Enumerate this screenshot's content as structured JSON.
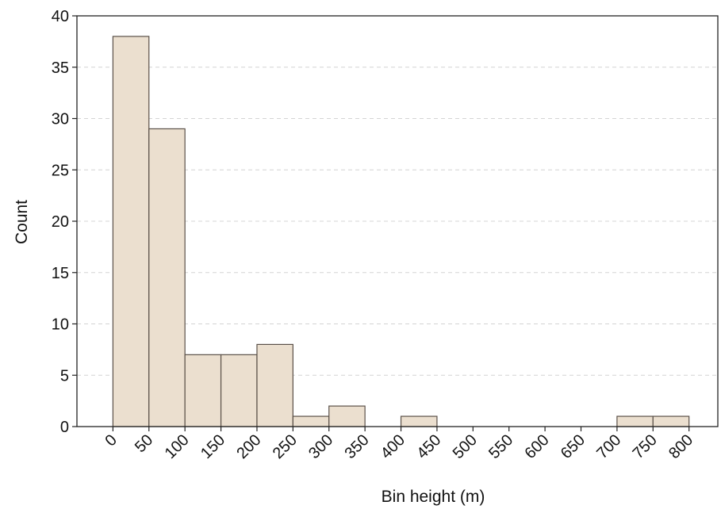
{
  "chart_data": {
    "type": "bar",
    "subtype": "histogram",
    "title": "",
    "xlabel": "Bin height (m)",
    "ylabel": "Count",
    "bins": [
      {
        "start": 0,
        "end": 50,
        "count": 38
      },
      {
        "start": 50,
        "end": 100,
        "count": 29
      },
      {
        "start": 100,
        "end": 150,
        "count": 7
      },
      {
        "start": 150,
        "end": 200,
        "count": 7
      },
      {
        "start": 200,
        "end": 250,
        "count": 8
      },
      {
        "start": 250,
        "end": 300,
        "count": 1
      },
      {
        "start": 300,
        "end": 350,
        "count": 2
      },
      {
        "start": 350,
        "end": 400,
        "count": 0
      },
      {
        "start": 400,
        "end": 450,
        "count": 1
      },
      {
        "start": 450,
        "end": 500,
        "count": 0
      },
      {
        "start": 500,
        "end": 550,
        "count": 0
      },
      {
        "start": 550,
        "end": 600,
        "count": 0
      },
      {
        "start": 600,
        "end": 650,
        "count": 0
      },
      {
        "start": 650,
        "end": 700,
        "count": 0
      },
      {
        "start": 700,
        "end": 750,
        "count": 1
      },
      {
        "start": 750,
        "end": 800,
        "count": 1
      }
    ],
    "xticks": [
      0,
      50,
      100,
      150,
      200,
      250,
      300,
      350,
      400,
      450,
      500,
      550,
      600,
      650,
      700,
      750,
      800
    ],
    "yticks": [
      0,
      5,
      10,
      15,
      20,
      25,
      30,
      35,
      40
    ],
    "xlim": [
      -50,
      840
    ],
    "ylim": [
      0,
      40
    ],
    "grid": {
      "y": true,
      "x": false,
      "style": "dashed"
    },
    "colors": {
      "bar_fill": "#ebdfcf",
      "bar_edge": "#5a5048",
      "grid": "#d4d4d4",
      "axis": "#222222"
    }
  }
}
